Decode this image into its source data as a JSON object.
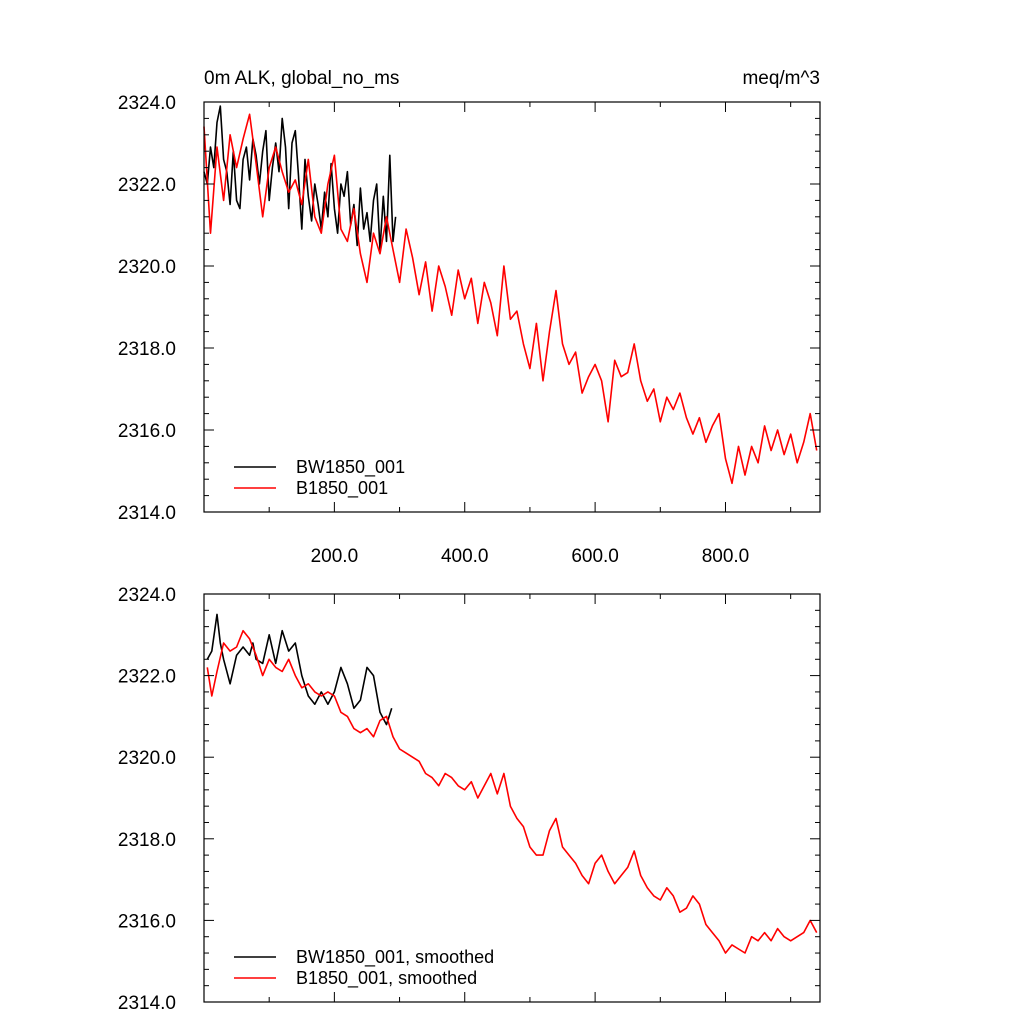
{
  "figure": {
    "title_left": "0m ALK, global_no_ms",
    "title_right": "meq/m^3"
  },
  "chart_data": [
    {
      "type": "line",
      "title": "0m ALK, global_no_ms",
      "units": "meq/m^3",
      "xlim": [
        0,
        945
      ],
      "ylim": [
        2314,
        2324
      ],
      "xticks": [
        200,
        400,
        600,
        800
      ],
      "xtick_labels": [
        "200.0",
        "400.0",
        "600.0",
        "800.0"
      ],
      "yticks": [
        2314,
        2316,
        2318,
        2320,
        2322,
        2324
      ],
      "ytick_labels": [
        "2314.0",
        "2316.0",
        "2318.0",
        "2320.0",
        "2322.0",
        "2324.0"
      ],
      "legend_position": "bottom-left",
      "series": [
        {
          "name": "BW1850_001",
          "color": "#000000",
          "x": [
            0,
            5,
            10,
            15,
            20,
            25,
            30,
            35,
            40,
            45,
            50,
            55,
            60,
            65,
            70,
            75,
            80,
            85,
            90,
            95,
            100,
            105,
            110,
            115,
            120,
            125,
            130,
            135,
            140,
            145,
            150,
            155,
            160,
            165,
            170,
            175,
            180,
            185,
            190,
            195,
            200,
            205,
            210,
            215,
            220,
            225,
            230,
            235,
            240,
            245,
            250,
            255,
            260,
            265,
            270,
            275,
            280,
            285,
            290,
            294
          ],
          "y": [
            2322.3,
            2322.0,
            2322.9,
            2322.4,
            2323.5,
            2323.9,
            2322.6,
            2322.3,
            2321.5,
            2322.8,
            2321.6,
            2321.4,
            2322.6,
            2322.9,
            2322.1,
            2323.1,
            2322.7,
            2322.0,
            2322.8,
            2323.3,
            2321.6,
            2322.4,
            2323.0,
            2322.3,
            2323.6,
            2322.9,
            2321.4,
            2323.0,
            2323.3,
            2322.2,
            2320.9,
            2322.6,
            2321.7,
            2321.1,
            2322.0,
            2321.5,
            2320.9,
            2321.8,
            2321.2,
            2322.5,
            2321.4,
            2320.8,
            2322.0,
            2321.7,
            2322.3,
            2321.0,
            2321.5,
            2320.5,
            2321.9,
            2320.9,
            2321.3,
            2320.6,
            2321.6,
            2322.0,
            2320.4,
            2321.7,
            2320.6,
            2322.7,
            2320.6,
            2321.2
          ]
        },
        {
          "name": "B1850_001",
          "color": "#ff0000",
          "x": [
            0,
            10,
            20,
            30,
            40,
            50,
            60,
            70,
            80,
            90,
            100,
            110,
            120,
            130,
            140,
            150,
            160,
            170,
            180,
            190,
            200,
            210,
            220,
            230,
            240,
            250,
            260,
            270,
            280,
            290,
            300,
            310,
            320,
            330,
            340,
            350,
            360,
            370,
            380,
            390,
            400,
            410,
            420,
            430,
            440,
            450,
            460,
            470,
            480,
            490,
            500,
            510,
            520,
            530,
            540,
            550,
            560,
            570,
            580,
            590,
            600,
            610,
            620,
            630,
            640,
            650,
            660,
            670,
            680,
            690,
            700,
            710,
            720,
            730,
            740,
            750,
            760,
            770,
            780,
            790,
            800,
            810,
            820,
            830,
            840,
            850,
            860,
            870,
            880,
            890,
            900,
            910,
            920,
            930,
            940
          ],
          "y": [
            2323.4,
            2320.8,
            2322.9,
            2321.6,
            2323.2,
            2322.4,
            2323.1,
            2323.7,
            2322.5,
            2321.2,
            2322.4,
            2322.9,
            2322.3,
            2321.8,
            2322.1,
            2321.5,
            2322.6,
            2321.2,
            2320.8,
            2322.0,
            2322.7,
            2320.9,
            2320.6,
            2321.4,
            2320.3,
            2319.6,
            2320.8,
            2320.3,
            2321.2,
            2320.4,
            2319.6,
            2320.9,
            2320.2,
            2319.3,
            2320.1,
            2318.9,
            2320.0,
            2319.5,
            2318.8,
            2319.9,
            2319.2,
            2319.7,
            2318.6,
            2319.6,
            2319.1,
            2318.3,
            2320.0,
            2318.7,
            2318.9,
            2318.1,
            2317.5,
            2318.6,
            2317.2,
            2318.4,
            2319.4,
            2318.1,
            2317.6,
            2317.9,
            2316.9,
            2317.3,
            2317.6,
            2317.2,
            2316.2,
            2317.7,
            2317.3,
            2317.4,
            2318.1,
            2317.2,
            2316.7,
            2317.0,
            2316.2,
            2316.8,
            2316.5,
            2316.9,
            2316.3,
            2315.9,
            2316.3,
            2315.7,
            2316.1,
            2316.4,
            2315.3,
            2314.7,
            2315.6,
            2314.9,
            2315.6,
            2315.2,
            2316.1,
            2315.5,
            2316.0,
            2315.4,
            2315.9,
            2315.2,
            2315.7,
            2316.4,
            2315.5
          ]
        }
      ]
    },
    {
      "type": "line",
      "xlim": [
        0,
        945
      ],
      "ylim": [
        2314,
        2324
      ],
      "xticks": [
        200,
        400,
        600,
        800
      ],
      "yticks": [
        2314,
        2316,
        2318,
        2320,
        2322,
        2324
      ],
      "ytick_labels": [
        "2314.0",
        "2316.0",
        "2318.0",
        "2320.0",
        "2322.0",
        "2324.0"
      ],
      "legend_position": "bottom-left",
      "series": [
        {
          "name": "BW1850_001, smoothed",
          "color": "#000000",
          "x": [
            5,
            12,
            20,
            25,
            30,
            40,
            50,
            60,
            70,
            75,
            80,
            90,
            100,
            110,
            120,
            130,
            140,
            150,
            160,
            170,
            180,
            190,
            200,
            210,
            220,
            230,
            240,
            250,
            260,
            270,
            280,
            288
          ],
          "y": [
            2322.4,
            2322.6,
            2323.5,
            2322.8,
            2322.4,
            2321.8,
            2322.5,
            2322.7,
            2322.5,
            2322.8,
            2322.4,
            2322.3,
            2323.0,
            2322.3,
            2323.1,
            2322.6,
            2322.8,
            2322.0,
            2321.5,
            2321.3,
            2321.6,
            2321.3,
            2321.6,
            2322.2,
            2321.8,
            2321.2,
            2321.4,
            2322.2,
            2322.0,
            2321.1,
            2320.8,
            2321.2
          ]
        },
        {
          "name": "B1850_001, smoothed",
          "color": "#ff0000",
          "x": [
            5,
            12,
            20,
            30,
            40,
            50,
            60,
            70,
            80,
            90,
            100,
            110,
            120,
            130,
            140,
            150,
            160,
            170,
            180,
            190,
            200,
            210,
            220,
            230,
            240,
            250,
            260,
            270,
            280,
            290,
            300,
            310,
            320,
            330,
            340,
            350,
            360,
            370,
            380,
            390,
            400,
            410,
            420,
            430,
            440,
            450,
            460,
            470,
            480,
            490,
            500,
            510,
            520,
            530,
            540,
            550,
            560,
            570,
            580,
            590,
            600,
            610,
            620,
            630,
            640,
            650,
            660,
            670,
            680,
            690,
            700,
            710,
            720,
            730,
            740,
            750,
            760,
            770,
            780,
            790,
            800,
            810,
            820,
            830,
            840,
            850,
            860,
            870,
            880,
            890,
            900,
            910,
            920,
            930,
            940
          ],
          "y": [
            2322.2,
            2321.5,
            2322.1,
            2322.8,
            2322.6,
            2322.7,
            2323.1,
            2322.9,
            2322.5,
            2322.0,
            2322.4,
            2322.2,
            2322.1,
            2322.4,
            2322.0,
            2321.7,
            2321.8,
            2321.6,
            2321.5,
            2321.6,
            2321.5,
            2321.1,
            2321.0,
            2320.7,
            2320.6,
            2320.7,
            2320.5,
            2320.9,
            2321.0,
            2320.5,
            2320.2,
            2320.1,
            2320.0,
            2319.9,
            2319.6,
            2319.5,
            2319.3,
            2319.6,
            2319.5,
            2319.3,
            2319.2,
            2319.4,
            2319.0,
            2319.3,
            2319.6,
            2319.1,
            2319.6,
            2318.8,
            2318.5,
            2318.3,
            2317.8,
            2317.6,
            2317.6,
            2318.2,
            2318.5,
            2317.8,
            2317.6,
            2317.4,
            2317.1,
            2316.9,
            2317.4,
            2317.6,
            2317.2,
            2316.9,
            2317.1,
            2317.3,
            2317.7,
            2317.1,
            2316.8,
            2316.6,
            2316.5,
            2316.8,
            2316.6,
            2316.2,
            2316.3,
            2316.6,
            2316.4,
            2315.9,
            2315.7,
            2315.5,
            2315.2,
            2315.4,
            2315.3,
            2315.2,
            2315.6,
            2315.5,
            2315.7,
            2315.5,
            2315.8,
            2315.6,
            2315.5,
            2315.6,
            2315.7,
            2316.0,
            2315.7
          ]
        }
      ]
    }
  ]
}
